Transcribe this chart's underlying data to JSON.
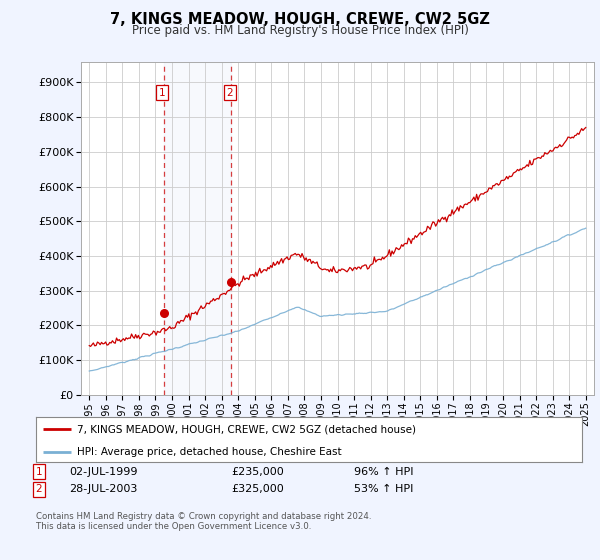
{
  "title": "7, KINGS MEADOW, HOUGH, CREWE, CW2 5GZ",
  "subtitle": "Price paid vs. HM Land Registry's House Price Index (HPI)",
  "ytick_vals": [
    0,
    100000,
    200000,
    300000,
    400000,
    500000,
    600000,
    700000,
    800000,
    900000
  ],
  "ylim": [
    0,
    960000
  ],
  "xlim_start": 1994.5,
  "xlim_end": 2025.5,
  "sale1_x": 1999.5,
  "sale1_y": 235000,
  "sale2_x": 2003.58,
  "sale2_y": 325000,
  "sale1_date": "02-JUL-1999",
  "sale1_price": "£235,000",
  "sale1_hpi": "96% ↑ HPI",
  "sale2_date": "28-JUL-2003",
  "sale2_price": "£325,000",
  "sale2_hpi": "53% ↑ HPI",
  "legend1": "7, KINGS MEADOW, HOUGH, CREWE, CW2 5GZ (detached house)",
  "legend2": "HPI: Average price, detached house, Cheshire East",
  "footer": "Contains HM Land Registry data © Crown copyright and database right 2024.\nThis data is licensed under the Open Government Licence v3.0.",
  "bg_color": "#f0f4ff",
  "plot_bg": "#ffffff",
  "red_color": "#cc0000",
  "blue_color": "#7ab0d4"
}
